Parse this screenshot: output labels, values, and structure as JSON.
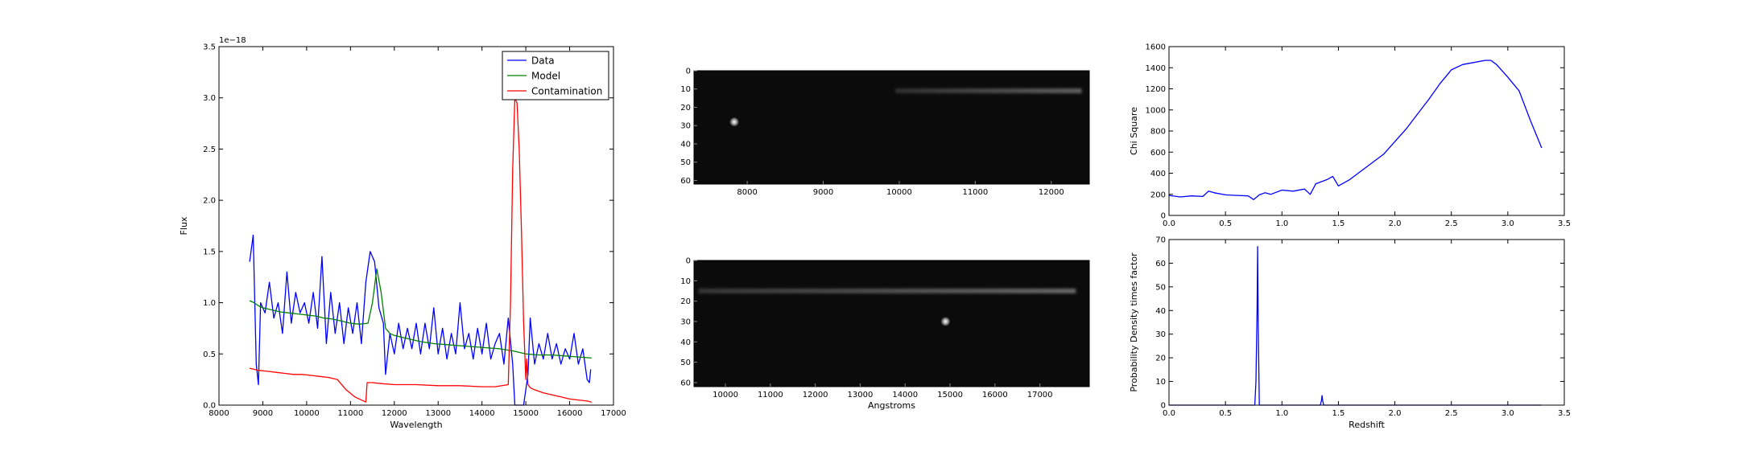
{
  "figure": {
    "colors": {
      "data": "#0000ff",
      "model": "#008000",
      "contamination": "#ff0000",
      "image_bg": "#0b0b0b"
    }
  },
  "chart_data": [
    {
      "type": "line",
      "xlabel": "Wavelength",
      "ylabel": "Flux",
      "offset_text": "1e−18",
      "xlim": [
        8000,
        17000
      ],
      "ylim": [
        0.0,
        3.5
      ],
      "xticks": [
        8000,
        9000,
        10000,
        11000,
        12000,
        13000,
        14000,
        15000,
        16000,
        17000
      ],
      "yticks": [
        0.0,
        0.5,
        1.0,
        1.5,
        2.0,
        2.5,
        3.0,
        3.5
      ],
      "xtick_labels": [
        "8000",
        "9000",
        "10000",
        "11000",
        "12000",
        "13000",
        "14000",
        "15000",
        "16000",
        "17000"
      ],
      "ytick_labels": [
        "0.0",
        "0.5",
        "1.0",
        "1.5",
        "2.0",
        "2.5",
        "3.0",
        "3.5"
      ],
      "legend": {
        "placement": "top-right",
        "entries": [
          "Data",
          "Model",
          "Contamination"
        ]
      },
      "series": [
        {
          "name": "Data",
          "color": "#0000ff",
          "x": [
            8700,
            8780,
            8850,
            8900,
            8950,
            9050,
            9150,
            9250,
            9350,
            9450,
            9550,
            9650,
            9750,
            9850,
            9950,
            10050,
            10150,
            10250,
            10350,
            10450,
            10550,
            10650,
            10750,
            10850,
            10950,
            11050,
            11150,
            11250,
            11350,
            11450,
            11550,
            11650,
            11750,
            11800,
            11900,
            12000,
            12100,
            12200,
            12300,
            12400,
            12500,
            12600,
            12700,
            12800,
            12900,
            13000,
            13100,
            13200,
            13300,
            13400,
            13500,
            13600,
            13700,
            13800,
            13900,
            14000,
            14100,
            14200,
            14300,
            14400,
            14500,
            14600,
            14700,
            14750,
            14850,
            14950,
            15050,
            15100,
            15200,
            15300,
            15400,
            15500,
            15600,
            15700,
            15800,
            15900,
            16000,
            16100,
            16200,
            16300,
            16400,
            16450,
            16480
          ],
          "y": [
            1.4,
            1.66,
            0.4,
            0.2,
            1.0,
            0.9,
            1.2,
            0.85,
            1.0,
            0.7,
            1.3,
            0.8,
            1.1,
            0.9,
            1.0,
            0.8,
            1.1,
            0.75,
            1.45,
            0.6,
            1.1,
            0.7,
            1.0,
            0.6,
            0.95,
            0.7,
            1.0,
            0.6,
            1.2,
            1.5,
            1.4,
            0.95,
            0.8,
            0.3,
            0.7,
            0.5,
            0.8,
            0.55,
            0.75,
            0.55,
            0.8,
            0.5,
            0.8,
            0.55,
            0.95,
            0.5,
            0.75,
            0.45,
            0.7,
            0.5,
            1.0,
            0.55,
            0.7,
            0.45,
            0.75,
            0.5,
            0.8,
            0.45,
            0.6,
            0.7,
            0.4,
            0.85,
            0.4,
            0.0,
            0.0,
            0.0,
            0.3,
            0.85,
            0.4,
            0.6,
            0.45,
            0.7,
            0.45,
            0.6,
            0.4,
            0.55,
            0.45,
            0.7,
            0.4,
            0.55,
            0.25,
            0.22,
            0.35
          ]
        },
        {
          "name": "Model",
          "color": "#008000",
          "x": [
            8700,
            8800,
            8900,
            9000,
            9200,
            9400,
            9600,
            9800,
            10000,
            10200,
            10400,
            10600,
            10800,
            11000,
            11200,
            11400,
            11500,
            11600,
            11700,
            11800,
            11900,
            12000,
            12300,
            12600,
            12900,
            13200,
            13500,
            13800,
            14100,
            14400,
            14700,
            15000,
            15300,
            15600,
            15900,
            16200,
            16500
          ],
          "y": [
            1.02,
            1.0,
            0.97,
            0.95,
            0.93,
            0.91,
            0.9,
            0.89,
            0.88,
            0.87,
            0.85,
            0.84,
            0.82,
            0.8,
            0.79,
            0.8,
            1.0,
            1.33,
            1.1,
            0.75,
            0.7,
            0.68,
            0.65,
            0.62,
            0.6,
            0.59,
            0.58,
            0.57,
            0.56,
            0.55,
            0.53,
            0.5,
            0.49,
            0.49,
            0.48,
            0.47,
            0.46
          ]
        },
        {
          "name": "Contamination",
          "color": "#ff0000",
          "x": [
            8700,
            8900,
            9100,
            9300,
            9500,
            9700,
            9900,
            10100,
            10300,
            10500,
            10700,
            10900,
            11100,
            11350,
            11380,
            11500,
            11700,
            12000,
            12500,
            13000,
            13500,
            14000,
            14300,
            14600,
            14650,
            14700,
            14750,
            14800,
            14850,
            14900,
            14950,
            15000,
            15020,
            15050,
            15100,
            15200,
            15400,
            15600,
            15800,
            16000,
            16200,
            16400,
            16500
          ],
          "y": [
            0.36,
            0.34,
            0.33,
            0.32,
            0.31,
            0.3,
            0.3,
            0.29,
            0.28,
            0.27,
            0.25,
            0.15,
            0.08,
            0.03,
            0.22,
            0.22,
            0.21,
            0.2,
            0.2,
            0.19,
            0.19,
            0.18,
            0.18,
            0.2,
            1.0,
            2.3,
            3.0,
            2.95,
            2.5,
            1.7,
            0.8,
            0.25,
            0.45,
            0.2,
            0.17,
            0.15,
            0.12,
            0.1,
            0.08,
            0.06,
            0.05,
            0.04,
            0.03
          ]
        }
      ]
    },
    {
      "type": "heatmap",
      "xlim": [
        7300,
        12500
      ],
      "ylim": [
        62,
        0
      ],
      "xticks": [
        8000,
        9000,
        10000,
        11000,
        12000
      ],
      "yticks": [
        0,
        10,
        20,
        30,
        40,
        50,
        60
      ],
      "xtick_labels": [
        "8000",
        "9000",
        "10000",
        "11000",
        "12000"
      ],
      "ytick_labels": [
        "0",
        "10",
        "20",
        "30",
        "40",
        "50",
        "60"
      ],
      "features": {
        "streak": {
          "row": 11,
          "x_start": 9950,
          "x_end": 12400,
          "intensity": [
            0.15,
            0.35
          ]
        },
        "source": {
          "x": 7830,
          "row": 28
        }
      }
    },
    {
      "type": "heatmap",
      "xlabel": "Angstroms",
      "xlim": [
        9300,
        18100
      ],
      "ylim": [
        62,
        0
      ],
      "xticks": [
        10000,
        11000,
        12000,
        13000,
        14000,
        15000,
        16000,
        17000
      ],
      "yticks": [
        0,
        10,
        20,
        30,
        40,
        50,
        60
      ],
      "xtick_labels": [
        "10000",
        "11000",
        "12000",
        "13000",
        "14000",
        "15000",
        "16000",
        "17000"
      ],
      "ytick_labels": [
        "0",
        "10",
        "20",
        "30",
        "40",
        "50",
        "60"
      ],
      "features": {
        "streak": {
          "row": 15,
          "x_start": 9400,
          "x_end": 17800,
          "intensity": [
            0.18,
            0.38
          ]
        },
        "source": {
          "x": 14900,
          "row": 30
        }
      }
    },
    {
      "type": "line",
      "ylabel": "Chi Square",
      "xlim": [
        0.0,
        3.5
      ],
      "ylim": [
        0,
        1600
      ],
      "xticks": [
        0.0,
        0.5,
        1.0,
        1.5,
        2.0,
        2.5,
        3.0,
        3.5
      ],
      "yticks": [
        0,
        200,
        400,
        600,
        800,
        1000,
        1200,
        1400,
        1600
      ],
      "xtick_labels": [
        "0.0",
        "0.5",
        "1.0",
        "1.5",
        "2.0",
        "2.5",
        "3.0",
        "3.5"
      ],
      "ytick_labels": [
        "0",
        "200",
        "400",
        "600",
        "800",
        "1000",
        "1200",
        "1400",
        "1600"
      ],
      "series": [
        {
          "color": "#0000ff",
          "x": [
            0.0,
            0.1,
            0.2,
            0.3,
            0.35,
            0.4,
            0.5,
            0.6,
            0.7,
            0.75,
            0.8,
            0.85,
            0.9,
            1.0,
            1.1,
            1.2,
            1.25,
            1.3,
            1.4,
            1.45,
            1.5,
            1.6,
            1.7,
            1.8,
            1.9,
            2.0,
            2.1,
            2.2,
            2.3,
            2.4,
            2.5,
            2.6,
            2.7,
            2.8,
            2.85,
            2.9,
            3.0,
            3.1,
            3.2,
            3.3
          ],
          "y": [
            190,
            175,
            185,
            180,
            230,
            215,
            195,
            190,
            185,
            150,
            195,
            215,
            200,
            240,
            230,
            250,
            200,
            300,
            340,
            370,
            280,
            340,
            420,
            500,
            580,
            700,
            820,
            960,
            1100,
            1250,
            1380,
            1430,
            1450,
            1470,
            1470,
            1430,
            1310,
            1180,
            900,
            640
          ]
        }
      ]
    },
    {
      "type": "line",
      "xlabel": "Redshift",
      "ylabel": "Probability Density times factor",
      "xlim": [
        0.0,
        3.5
      ],
      "ylim": [
        0,
        70
      ],
      "xticks": [
        0.0,
        0.5,
        1.0,
        1.5,
        2.0,
        2.5,
        3.0,
        3.5
      ],
      "yticks": [
        0,
        10,
        20,
        30,
        40,
        50,
        60,
        70
      ],
      "xtick_labels": [
        "0.0",
        "0.5",
        "1.0",
        "1.5",
        "2.0",
        "2.5",
        "3.0",
        "3.5"
      ],
      "ytick_labels": [
        "0",
        "10",
        "20",
        "30",
        "40",
        "50",
        "60",
        "70"
      ],
      "series": [
        {
          "color": "#0000ff",
          "x": [
            0.0,
            0.76,
            0.77,
            0.78,
            0.785,
            0.79,
            0.8,
            1.34,
            1.35,
            1.355,
            1.36,
            1.37,
            3.3
          ],
          "y": [
            0,
            0,
            10,
            40,
            67,
            35,
            0,
            0,
            2,
            4,
            2,
            0,
            0
          ]
        }
      ]
    }
  ]
}
